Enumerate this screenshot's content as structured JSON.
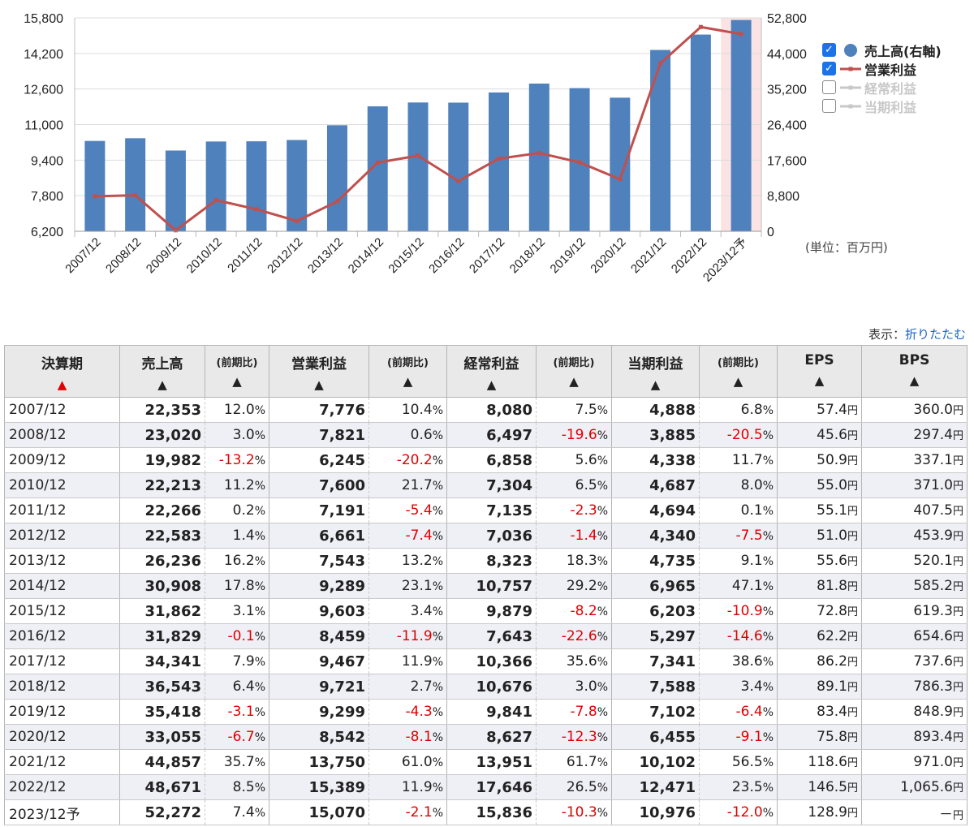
{
  "chart_data": {
    "type": "bar+line",
    "categories": [
      "2007/12",
      "2008/12",
      "2009/12",
      "2010/12",
      "2011/12",
      "2012/12",
      "2013/12",
      "2014/12",
      "2015/12",
      "2016/12",
      "2017/12",
      "2018/12",
      "2019/12",
      "2020/12",
      "2021/12",
      "2022/12",
      "2023/12予"
    ],
    "left_axis": {
      "ticks": [
        "6,200",
        "7,800",
        "9,400",
        "11,000",
        "12,600",
        "14,200",
        "15,800"
      ],
      "range": [
        6200,
        15800
      ]
    },
    "right_axis": {
      "ticks": [
        "0",
        "8,800",
        "17,600",
        "26,400",
        "35,200",
        "44,000",
        "52,800"
      ],
      "range": [
        0,
        52800
      ]
    },
    "series": [
      {
        "name": "売上高(右軸)",
        "type": "bar",
        "axis": "right",
        "color": "#4f81bd",
        "visible": true,
        "values": [
          22353,
          23020,
          19982,
          22213,
          22266,
          22583,
          26236,
          30908,
          31862,
          31829,
          34341,
          36543,
          35418,
          33055,
          44857,
          48671,
          52272
        ]
      },
      {
        "name": "営業利益",
        "type": "line",
        "axis": "left",
        "color": "#c0504d",
        "visible": true,
        "values": [
          7776,
          7821,
          6245,
          7600,
          7191,
          6661,
          7543,
          9289,
          9603,
          8459,
          9467,
          9721,
          9299,
          8542,
          13750,
          15389,
          15070
        ]
      },
      {
        "name": "経常利益",
        "type": "line",
        "axis": "left",
        "color": "#c8c8c8",
        "visible": false
      },
      {
        "name": "当期利益",
        "type": "line",
        "axis": "left",
        "color": "#c8c8c8",
        "visible": false
      }
    ],
    "forecast_highlight_color": "#fbe3e3",
    "unit_label": "(単位：百万円)"
  },
  "display_toggle": {
    "label": "表示：",
    "link": "折りたたむ"
  },
  "table": {
    "headers": [
      {
        "label": "決算期",
        "arrow": "▲",
        "active": true
      },
      {
        "label": "売上高",
        "arrow": "▲"
      },
      {
        "label": "(前期比)",
        "arrow": "▲",
        "small": true
      },
      {
        "label": "営業利益",
        "arrow": "▲"
      },
      {
        "label": "(前期比)",
        "arrow": "▲",
        "small": true
      },
      {
        "label": "経常利益",
        "arrow": "▲"
      },
      {
        "label": "(前期比)",
        "arrow": "▲",
        "small": true
      },
      {
        "label": "当期利益",
        "arrow": "▲"
      },
      {
        "label": "(前期比)",
        "arrow": "▲",
        "small": true
      },
      {
        "label": "EPS",
        "arrow": "▲"
      },
      {
        "label": "BPS",
        "arrow": "▲"
      }
    ],
    "pct_unit": "%",
    "yen_unit": "円",
    "rows": [
      [
        "2007/12",
        "22,353",
        "12.0",
        "7,776",
        "10.4",
        "8,080",
        "7.5",
        "4,888",
        "6.8",
        "57.4",
        "360.0"
      ],
      [
        "2008/12",
        "23,020",
        "3.0",
        "7,821",
        "0.6",
        "6,497",
        "-19.6",
        "3,885",
        "-20.5",
        "45.6",
        "297.4"
      ],
      [
        "2009/12",
        "19,982",
        "-13.2",
        "6,245",
        "-20.2",
        "6,858",
        "5.6",
        "4,338",
        "11.7",
        "50.9",
        "337.1"
      ],
      [
        "2010/12",
        "22,213",
        "11.2",
        "7,600",
        "21.7",
        "7,304",
        "6.5",
        "4,687",
        "8.0",
        "55.0",
        "371.0"
      ],
      [
        "2011/12",
        "22,266",
        "0.2",
        "7,191",
        "-5.4",
        "7,135",
        "-2.3",
        "4,694",
        "0.1",
        "55.1",
        "407.5"
      ],
      [
        "2012/12",
        "22,583",
        "1.4",
        "6,661",
        "-7.4",
        "7,036",
        "-1.4",
        "4,340",
        "-7.5",
        "51.0",
        "453.9"
      ],
      [
        "2013/12",
        "26,236",
        "16.2",
        "7,543",
        "13.2",
        "8,323",
        "18.3",
        "4,735",
        "9.1",
        "55.6",
        "520.1"
      ],
      [
        "2014/12",
        "30,908",
        "17.8",
        "9,289",
        "23.1",
        "10,757",
        "29.2",
        "6,965",
        "47.1",
        "81.8",
        "585.2"
      ],
      [
        "2015/12",
        "31,862",
        "3.1",
        "9,603",
        "3.4",
        "9,879",
        "-8.2",
        "6,203",
        "-10.9",
        "72.8",
        "619.3"
      ],
      [
        "2016/12",
        "31,829",
        "-0.1",
        "8,459",
        "-11.9",
        "7,643",
        "-22.6",
        "5,297",
        "-14.6",
        "62.2",
        "654.6"
      ],
      [
        "2017/12",
        "34,341",
        "7.9",
        "9,467",
        "11.9",
        "10,366",
        "35.6",
        "7,341",
        "38.6",
        "86.2",
        "737.6"
      ],
      [
        "2018/12",
        "36,543",
        "6.4",
        "9,721",
        "2.7",
        "10,676",
        "3.0",
        "7,588",
        "3.4",
        "89.1",
        "786.3"
      ],
      [
        "2019/12",
        "35,418",
        "-3.1",
        "9,299",
        "-4.3",
        "9,841",
        "-7.8",
        "7,102",
        "-6.4",
        "83.4",
        "848.9"
      ],
      [
        "2020/12",
        "33,055",
        "-6.7",
        "8,542",
        "-8.1",
        "8,627",
        "-12.3",
        "6,455",
        "-9.1",
        "75.8",
        "893.4"
      ],
      [
        "2021/12",
        "44,857",
        "35.7",
        "13,750",
        "61.0",
        "13,951",
        "61.7",
        "10,102",
        "56.5",
        "118.6",
        "971.0"
      ],
      [
        "2022/12",
        "48,671",
        "8.5",
        "15,389",
        "11.9",
        "17,646",
        "26.5",
        "12,471",
        "23.5",
        "146.5",
        "1,065.6"
      ],
      [
        "2023/12予",
        "52,272",
        "7.4",
        "15,070",
        "-2.1",
        "15,836",
        "-10.3",
        "10,976",
        "-12.0",
        "128.9",
        "－"
      ]
    ]
  }
}
